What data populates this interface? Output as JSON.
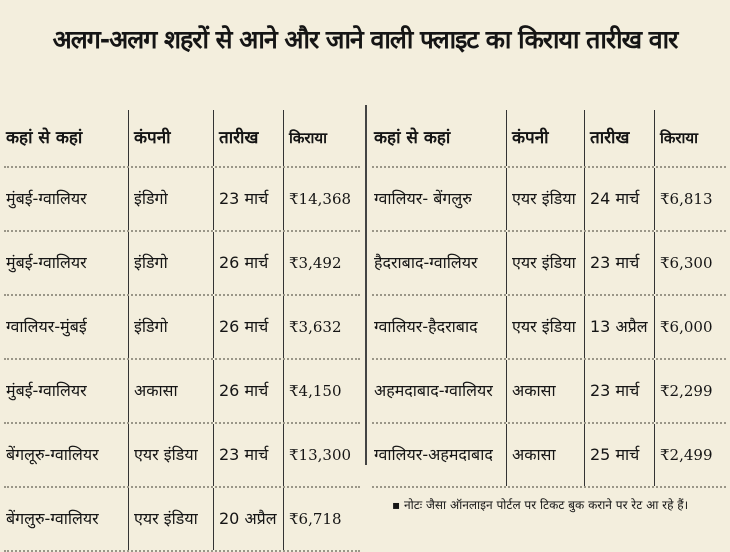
{
  "title": "अलग-अलग शहरों से आने और जाने वाली फ्लाइट का किराया तारीख वार",
  "headers": [
    "कहां से कहां",
    "कंपनी",
    "तारीख",
    "किराया"
  ],
  "left_rows": [
    {
      "route": "मुंबई-ग्वालियर",
      "company": "इंडिगो",
      "date": "23 मार्च",
      "fare": "₹14,368"
    },
    {
      "route": "मुंबई-ग्वालियर",
      "company": "इंडिगो",
      "date": "26 मार्च",
      "fare": "₹3,492"
    },
    {
      "route": "ग्वालियर-मुंबई",
      "company": "इंडिगो",
      "date": "26 मार्च",
      "fare": "₹3,632"
    },
    {
      "route": "मुंबई-ग्वालियर",
      "company": "अकासा",
      "date": "26 मार्च",
      "fare": "₹4,150"
    },
    {
      "route": "बेंगलूरु-ग्वालियर",
      "company": "एयर इंडिया",
      "date": "23 मार्च",
      "fare": "₹13,300"
    },
    {
      "route": "बेंगलुरु-ग्वालियर",
      "company": "एयर इंडिया",
      "date": "20 अप्रैल",
      "fare": "₹6,718"
    }
  ],
  "right_rows": [
    {
      "route": "ग्वालियर- बेंगलुरु",
      "company": "एयर इंडिया",
      "date": "24 मार्च",
      "fare": "₹6,813"
    },
    {
      "route": "हैदराबाद-ग्वालियर",
      "company": "एयर इंडिया",
      "date": "23 मार्च",
      "fare": "₹6,300"
    },
    {
      "route": "ग्वालियर-हैदराबाद",
      "company": "एयर इंडिया",
      "date": "13 अप्रैल",
      "fare": "₹6,000"
    },
    {
      "route": "अहमदाबाद-ग्वालियर",
      "company": "अकासा",
      "date": "23 मार्च",
      "fare": "₹2,299"
    },
    {
      "route": "ग्वालियर-अहमदाबाद",
      "company": "अकासा",
      "date": "25 मार्च",
      "fare": "₹2,499"
    }
  ],
  "note": "▪ नोटः जैसा ऑनलाइन पोर्टल पर टिकट बुक कराने पर रेट आ रहे हैं।"
}
